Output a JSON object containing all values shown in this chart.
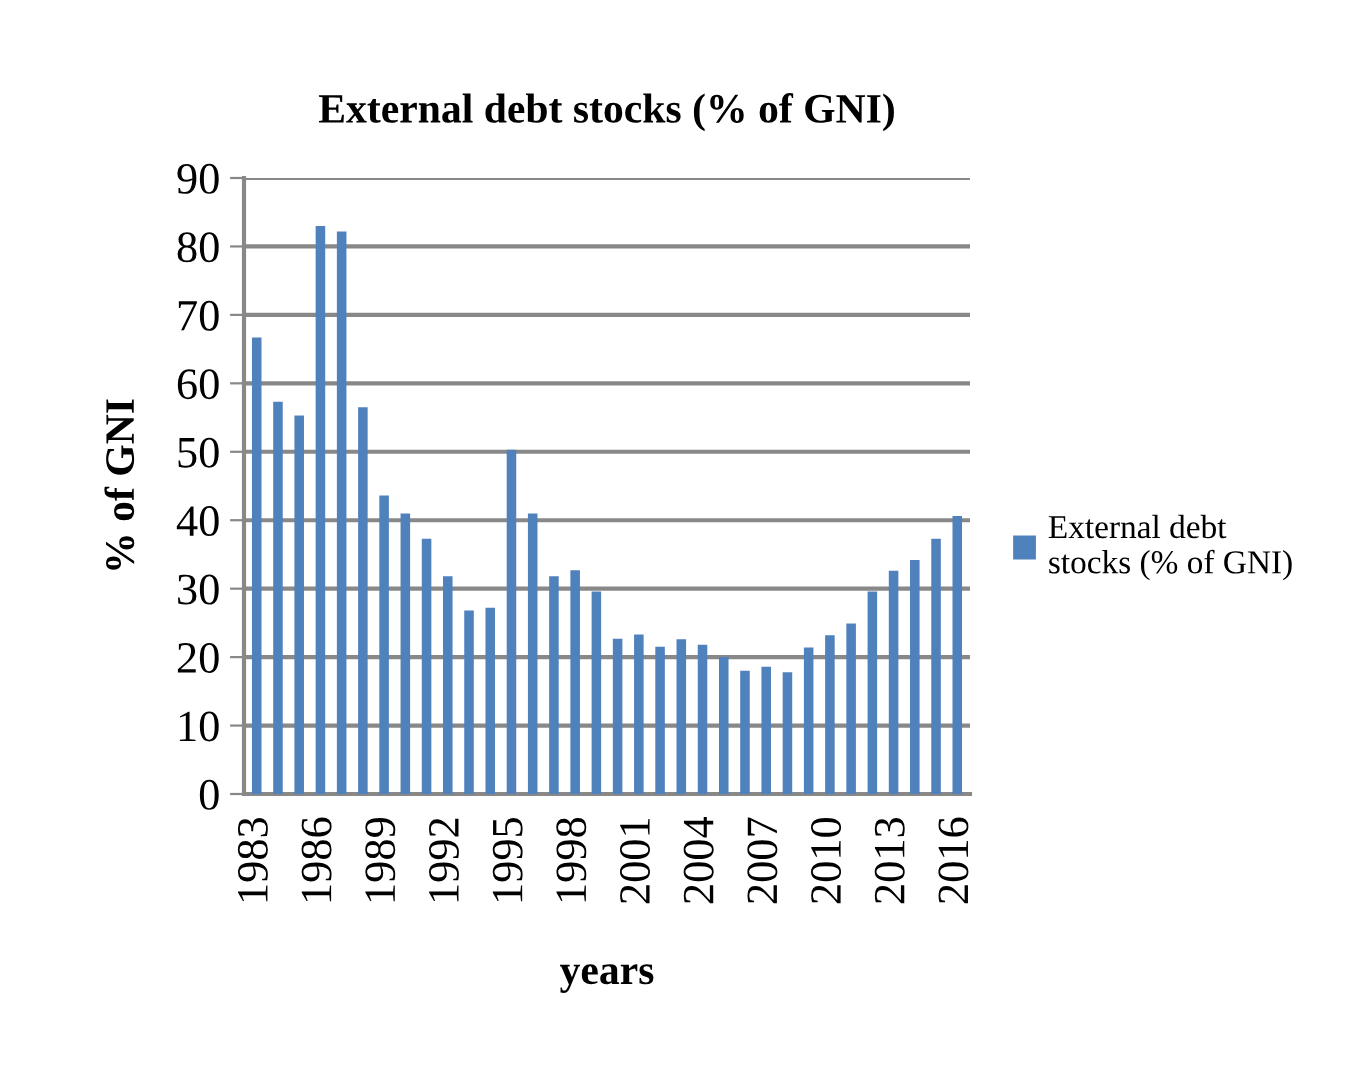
{
  "chart_data": {
    "type": "bar",
    "title": "External debt stocks (% of GNI)",
    "xlabel": "years",
    "ylabel": "% of GNI",
    "categories": [
      "1983",
      null,
      null,
      "1986",
      null,
      null,
      "1989",
      null,
      null,
      "1992",
      null,
      null,
      "1995",
      null,
      null,
      "1998",
      null,
      null,
      "2001",
      null,
      null,
      "2004",
      null,
      null,
      "2007",
      null,
      null,
      "2010",
      null,
      null,
      "2013",
      null,
      null,
      "2016"
    ],
    "series": [
      {
        "name": "External debt stocks (% of GNI)",
        "color": "#4f81bd",
        "values": [
          66.7,
          57.3,
          55.3,
          83,
          82.2,
          56.5,
          43.6,
          41,
          37.3,
          31.8,
          26.8,
          27.2,
          50.3,
          41,
          31.8,
          32.7,
          29.6,
          22.7,
          23.3,
          21.5,
          22.6,
          21.8,
          20,
          18,
          18.6,
          17.8,
          21.4,
          23.2,
          24.9,
          29.6,
          32.6,
          34.2,
          37.3,
          40.6
        ]
      }
    ],
    "ylim": [
      0,
      90
    ],
    "yticks": [
      0,
      10,
      20,
      30,
      40,
      50,
      60,
      70,
      80,
      90
    ],
    "grid": "y",
    "legend": "right"
  }
}
